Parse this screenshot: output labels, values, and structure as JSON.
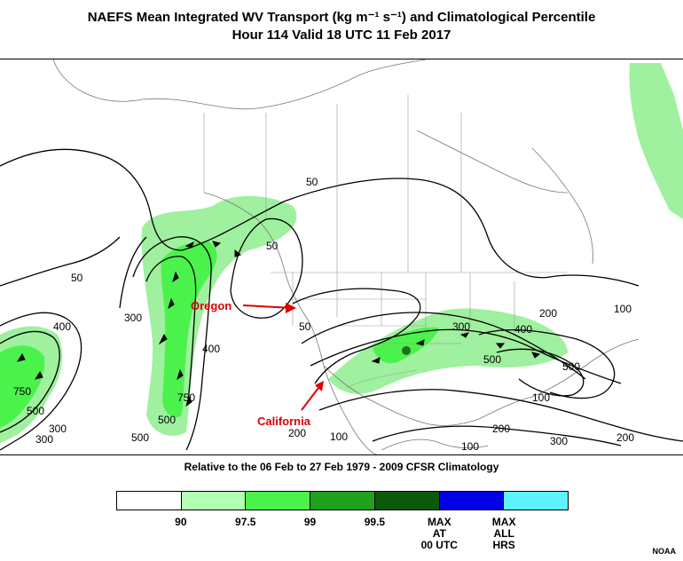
{
  "title": {
    "line1": "NAEFS Mean Integrated WV Transport (kg m⁻¹ s⁻¹) and Climatological Percentile",
    "line2": "Hour 114 Valid 18 UTC 11 Feb 2017"
  },
  "subtitle": "Relative to the 06 Feb to 27 Feb 1979 - 2009 CFSR Climatology",
  "annotations": {
    "oregon": "Oregon",
    "california": "California"
  },
  "contour_labels": [
    "50",
    "50",
    "50",
    "50",
    "300",
    "400",
    "400",
    "300",
    "500",
    "750",
    "500",
    "300",
    "750",
    "500",
    "200",
    "100",
    "300",
    "400",
    "500",
    "500",
    "200",
    "100",
    "100",
    "200",
    "300",
    "200",
    "100"
  ],
  "colorbar": {
    "colors": [
      "#ffffff",
      "#b3ffb3",
      "#4cf24c",
      "#1fa01f",
      "#0a5a0a",
      "#0000e6",
      "#5cf2ff"
    ],
    "ticks": [
      "90",
      "97.5",
      "99",
      "99.5",
      "MAX\nAT\n00 UTC",
      "MAX\nALL\nHRS"
    ]
  },
  "credit": "NOAA"
}
